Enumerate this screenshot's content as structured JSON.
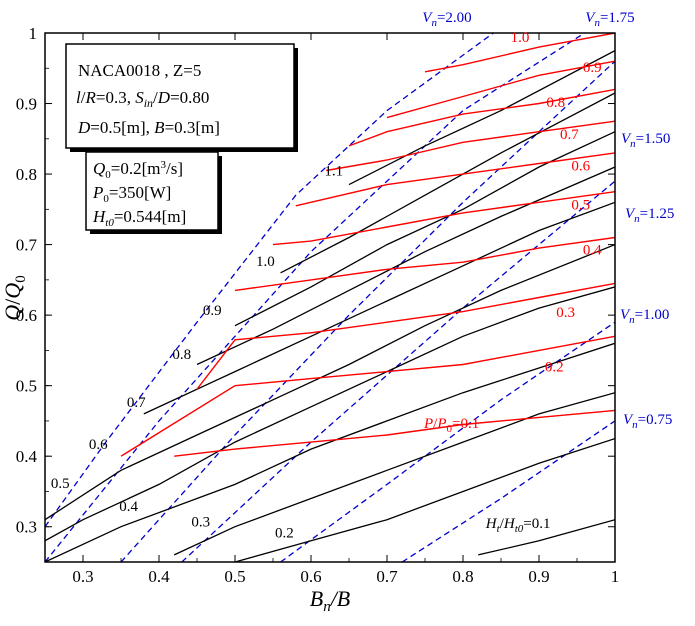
{
  "chart_data": {
    "type": "line",
    "xlabel": "B_n/B",
    "ylabel": "Q/Q_0",
    "xlim": [
      0.25,
      1.0
    ],
    "ylim": [
      0.25,
      1.0
    ],
    "x_ticks": [
      "0.3",
      "0.4",
      "0.5",
      "0.6",
      "0.7",
      "0.8",
      "0.9",
      "1"
    ],
    "y_ticks": [
      "0.3",
      "0.4",
      "0.5",
      "0.6",
      "0.7",
      "0.8",
      "0.9",
      "1"
    ],
    "info_box_1": [
      "NACA0018 , Z=5",
      "l/R=0.3, S_in/D=0.80",
      "D=0.5[m], B=0.3[m]"
    ],
    "info_box_2": [
      "Q_0=0.2[m^3/s]",
      "P_0=350[W]",
      "H_t0=0.544[m]"
    ],
    "colors": {
      "head": "#000000",
      "power": "#ff0000",
      "velocity": "#0000cc"
    },
    "head_series": [
      {
        "label": "0.1",
        "label_prefix": "H_t/H_t0=",
        "points": [
          [
            0.82,
            0.26
          ],
          [
            0.9,
            0.28
          ],
          [
            1.0,
            0.31
          ]
        ]
      },
      {
        "label": "0.2",
        "points": [
          [
            0.5,
            0.25
          ],
          [
            0.6,
            0.28
          ],
          [
            0.7,
            0.31
          ],
          [
            0.8,
            0.35
          ],
          [
            0.9,
            0.39
          ],
          [
            1.0,
            0.425
          ]
        ]
      },
      {
        "label": "0.3",
        "points": [
          [
            0.42,
            0.26
          ],
          [
            0.5,
            0.3
          ],
          [
            0.6,
            0.34
          ],
          [
            0.7,
            0.38
          ],
          [
            0.8,
            0.42
          ],
          [
            0.9,
            0.46
          ],
          [
            1.0,
            0.49
          ]
        ]
      },
      {
        "label": "0.4",
        "points": [
          [
            0.25,
            0.25
          ],
          [
            0.35,
            0.3
          ],
          [
            0.5,
            0.36
          ],
          [
            0.6,
            0.41
          ],
          [
            0.7,
            0.45
          ],
          [
            0.8,
            0.49
          ],
          [
            0.9,
            0.525
          ],
          [
            1.0,
            0.56
          ]
        ]
      },
      {
        "label": "0.5",
        "points": [
          [
            0.25,
            0.28
          ],
          [
            0.3,
            0.31
          ],
          [
            0.4,
            0.36
          ],
          [
            0.5,
            0.42
          ],
          [
            0.6,
            0.47
          ],
          [
            0.7,
            0.52
          ],
          [
            0.8,
            0.57
          ],
          [
            0.9,
            0.61
          ],
          [
            1.0,
            0.64
          ]
        ]
      },
      {
        "label": "0.6",
        "points": [
          [
            0.25,
            0.31
          ],
          [
            0.35,
            0.38
          ],
          [
            0.45,
            0.43
          ],
          [
            0.55,
            0.48
          ],
          [
            0.65,
            0.53
          ],
          [
            0.75,
            0.585
          ],
          [
            0.85,
            0.635
          ],
          [
            1.0,
            0.7
          ]
        ]
      },
      {
        "label": "0.7",
        "points": [
          [
            0.38,
            0.46
          ],
          [
            0.5,
            0.52
          ],
          [
            0.6,
            0.57
          ],
          [
            0.7,
            0.62
          ],
          [
            0.8,
            0.67
          ],
          [
            0.9,
            0.72
          ],
          [
            1.0,
            0.76
          ]
        ]
      },
      {
        "label": "0.8",
        "points": [
          [
            0.45,
            0.53
          ],
          [
            0.55,
            0.58
          ],
          [
            0.65,
            0.635
          ],
          [
            0.75,
            0.69
          ],
          [
            0.85,
            0.74
          ],
          [
            1.0,
            0.81
          ]
        ]
      },
      {
        "label": "0.9",
        "points": [
          [
            0.5,
            0.585
          ],
          [
            0.6,
            0.64
          ],
          [
            0.7,
            0.7
          ],
          [
            0.8,
            0.75
          ],
          [
            0.9,
            0.81
          ],
          [
            1.0,
            0.86
          ]
        ]
      },
      {
        "label": "1.0",
        "points": [
          [
            0.56,
            0.66
          ],
          [
            0.65,
            0.71
          ],
          [
            0.75,
            0.77
          ],
          [
            0.85,
            0.83
          ],
          [
            1.0,
            0.915
          ]
        ]
      },
      {
        "label": "1.1",
        "points": [
          [
            0.65,
            0.785
          ],
          [
            0.75,
            0.84
          ],
          [
            0.85,
            0.89
          ],
          [
            1.0,
            0.975
          ]
        ]
      }
    ],
    "power_series": [
      {
        "label": "0.1",
        "label_prefix": "P/P_0=",
        "points": [
          [
            0.42,
            0.4
          ],
          [
            0.5,
            0.41
          ],
          [
            0.6,
            0.42
          ],
          [
            0.7,
            0.43
          ],
          [
            0.8,
            0.445
          ],
          [
            0.9,
            0.455
          ],
          [
            1.0,
            0.465
          ]
        ]
      },
      {
        "label": "0.2",
        "points": [
          [
            0.35,
            0.4
          ],
          [
            0.5,
            0.5
          ],
          [
            0.6,
            0.51
          ],
          [
            0.7,
            0.52
          ],
          [
            0.8,
            0.53
          ],
          [
            0.9,
            0.55
          ],
          [
            1.0,
            0.57
          ]
        ]
      },
      {
        "label": "0.3",
        "points": [
          [
            0.45,
            0.495
          ],
          [
            0.5,
            0.565
          ],
          [
            0.6,
            0.575
          ],
          [
            0.7,
            0.59
          ],
          [
            0.8,
            0.605
          ],
          [
            0.9,
            0.625
          ],
          [
            1.0,
            0.645
          ]
        ]
      },
      {
        "label": "0.4",
        "points": [
          [
            0.5,
            0.635
          ],
          [
            0.6,
            0.65
          ],
          [
            0.7,
            0.665
          ],
          [
            0.8,
            0.675
          ],
          [
            0.9,
            0.695
          ],
          [
            1.0,
            0.71
          ]
        ]
      },
      {
        "label": "0.5",
        "points": [
          [
            0.55,
            0.7
          ],
          [
            0.6,
            0.705
          ],
          [
            0.7,
            0.725
          ],
          [
            0.8,
            0.745
          ],
          [
            0.9,
            0.76
          ],
          [
            1.0,
            0.775
          ]
        ]
      },
      {
        "label": "0.6",
        "points": [
          [
            0.58,
            0.755
          ],
          [
            0.7,
            0.785
          ],
          [
            0.8,
            0.8
          ],
          [
            0.9,
            0.815
          ],
          [
            1.0,
            0.83
          ]
        ]
      },
      {
        "label": "0.7",
        "points": [
          [
            0.62,
            0.805
          ],
          [
            0.7,
            0.82
          ],
          [
            0.8,
            0.845
          ],
          [
            0.9,
            0.86
          ],
          [
            1.0,
            0.875
          ]
        ]
      },
      {
        "label": "0.8",
        "points": [
          [
            0.65,
            0.84
          ],
          [
            0.7,
            0.86
          ],
          [
            0.8,
            0.885
          ],
          [
            0.9,
            0.9
          ],
          [
            1.0,
            0.92
          ]
        ]
      },
      {
        "label": "0.9",
        "points": [
          [
            0.7,
            0.88
          ],
          [
            0.8,
            0.91
          ],
          [
            0.9,
            0.94
          ],
          [
            1.0,
            0.96
          ]
        ]
      },
      {
        "label": "1.0",
        "points": [
          [
            0.75,
            0.945
          ],
          [
            0.8,
            0.955
          ],
          [
            0.9,
            0.98
          ],
          [
            1.0,
            1.0
          ]
        ]
      }
    ],
    "velocity_series": [
      {
        "label": "2.00",
        "label_prefix": "V_n=",
        "points": [
          [
            0.25,
            0.3
          ],
          [
            0.33,
            0.42
          ],
          [
            0.45,
            0.59
          ],
          [
            0.58,
            0.77
          ],
          [
            0.7,
            0.89
          ],
          [
            0.84,
            1.0
          ]
        ]
      },
      {
        "label": "1.75",
        "label_prefix": "V_n=",
        "points": [
          [
            0.25,
            0.25
          ],
          [
            0.4,
            0.45
          ],
          [
            0.6,
            0.69
          ],
          [
            0.8,
            0.89
          ],
          [
            0.96,
            1.0
          ]
        ]
      },
      {
        "label": "1.50",
        "label_prefix": "V_n=",
        "points": [
          [
            0.35,
            0.25
          ],
          [
            0.5,
            0.43
          ],
          [
            0.65,
            0.6
          ],
          [
            0.8,
            0.76
          ],
          [
            1.0,
            0.96
          ]
        ]
      },
      {
        "label": "1.25",
        "label_prefix": "V_n=",
        "points": [
          [
            0.43,
            0.25
          ],
          [
            0.6,
            0.42
          ],
          [
            0.8,
            0.61
          ],
          [
            1.0,
            0.79
          ]
        ]
      },
      {
        "label": "1.00",
        "label_prefix": "V_n=",
        "points": [
          [
            0.56,
            0.25
          ],
          [
            0.7,
            0.36
          ],
          [
            0.85,
            0.48
          ],
          [
            1.0,
            0.59
          ]
        ]
      },
      {
        "label": "0.75",
        "label_prefix": "V_n=",
        "points": [
          [
            0.72,
            0.25
          ],
          [
            0.85,
            0.34
          ],
          [
            1.0,
            0.45
          ]
        ]
      }
    ]
  }
}
